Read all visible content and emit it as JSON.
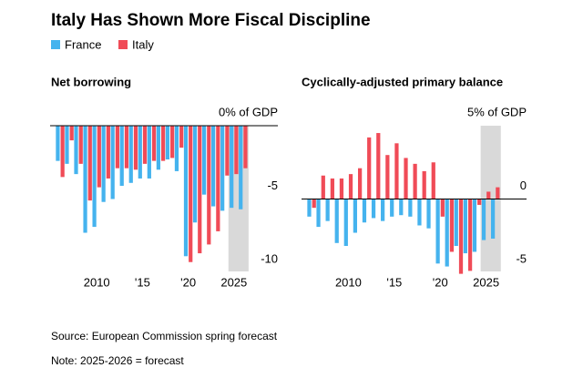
{
  "title": "Italy Has Shown More Fiscal Discipline",
  "source": "Source: European Commission spring forecast",
  "note": "Note: 2025-2026 = forecast",
  "chart_data": [
    {
      "type": "bar",
      "title": "Net borrowing",
      "x": [
        2006,
        2007,
        2008,
        2009,
        2010,
        2011,
        2012,
        2013,
        2014,
        2015,
        2016,
        2017,
        2018,
        2019,
        2020,
        2021,
        2022,
        2023,
        2024,
        2025,
        2026
      ],
      "series": [
        {
          "name": "France",
          "color": "#45b3ee",
          "values": [
            -2.4,
            -2.6,
            -3.3,
            -7.3,
            -6.9,
            -5.2,
            -5.0,
            -4.1,
            -3.9,
            -3.6,
            -3.6,
            -3.0,
            -2.3,
            -3.1,
            -8.9,
            -6.6,
            -4.7,
            -5.5,
            -5.8,
            -5.6,
            -5.7
          ]
        },
        {
          "name": "Italy",
          "color": "#f04b57",
          "values": [
            -3.5,
            -1.0,
            -2.6,
            -5.1,
            -4.2,
            -3.6,
            -2.9,
            -2.9,
            -3.0,
            -2.6,
            -2.4,
            -2.4,
            -2.2,
            -1.5,
            -9.3,
            -8.7,
            -8.1,
            -7.2,
            -3.4,
            -3.3,
            -2.9
          ]
        }
      ],
      "xlim": [
        2004.9,
        2029.8
      ],
      "xticks": [
        2010,
        {
          "value": 2015,
          "label": "'15"
        },
        {
          "value": 2020,
          "label": "'20"
        },
        2025
      ],
      "ylim": [
        -10,
        0
      ],
      "yticks": [
        {
          "value": 0,
          "label": "0% of GDP"
        },
        -5,
        -10
      ],
      "shade": {
        "from": 2025,
        "to": 2026,
        "color": "#d9d9d9"
      }
    },
    {
      "type": "bar",
      "title": "Cyclically-adjusted primary balance",
      "x": [
        2006,
        2007,
        2008,
        2009,
        2010,
        2011,
        2012,
        2013,
        2014,
        2015,
        2016,
        2017,
        2018,
        2019,
        2020,
        2021,
        2022,
        2023,
        2024,
        2025,
        2026
      ],
      "series": [
        {
          "name": "France",
          "color": "#45b3ee",
          "values": [
            -1.2,
            -1.9,
            -1.5,
            -3.0,
            -3.2,
            -2.3,
            -1.6,
            -1.3,
            -1.5,
            -1.2,
            -1.1,
            -1.2,
            -1.8,
            -2.0,
            -4.4,
            -4.6,
            -3.2,
            -3.7,
            -3.6,
            -2.8,
            -2.7
          ]
        },
        {
          "name": "Italy",
          "color": "#f04b57",
          "values": [
            -0.6,
            1.6,
            1.4,
            1.4,
            1.7,
            2.1,
            4.2,
            4.5,
            3.0,
            3.8,
            2.8,
            2.4,
            1.9,
            2.5,
            -1.2,
            -3.6,
            -5.1,
            -4.9,
            -0.4,
            0.5,
            0.8
          ]
        }
      ],
      "xlim": [
        2004.9,
        2029.4
      ],
      "xticks": [
        2010,
        {
          "value": 2015,
          "label": "'15"
        },
        {
          "value": 2020,
          "label": "'20"
        },
        2025
      ],
      "ylim": [
        -5,
        5
      ],
      "yticks": [
        {
          "value": 5,
          "label": "5% of GDP"
        },
        0,
        -5
      ],
      "shade": {
        "from": 2025,
        "to": 2026,
        "color": "#d9d9d9"
      }
    }
  ]
}
